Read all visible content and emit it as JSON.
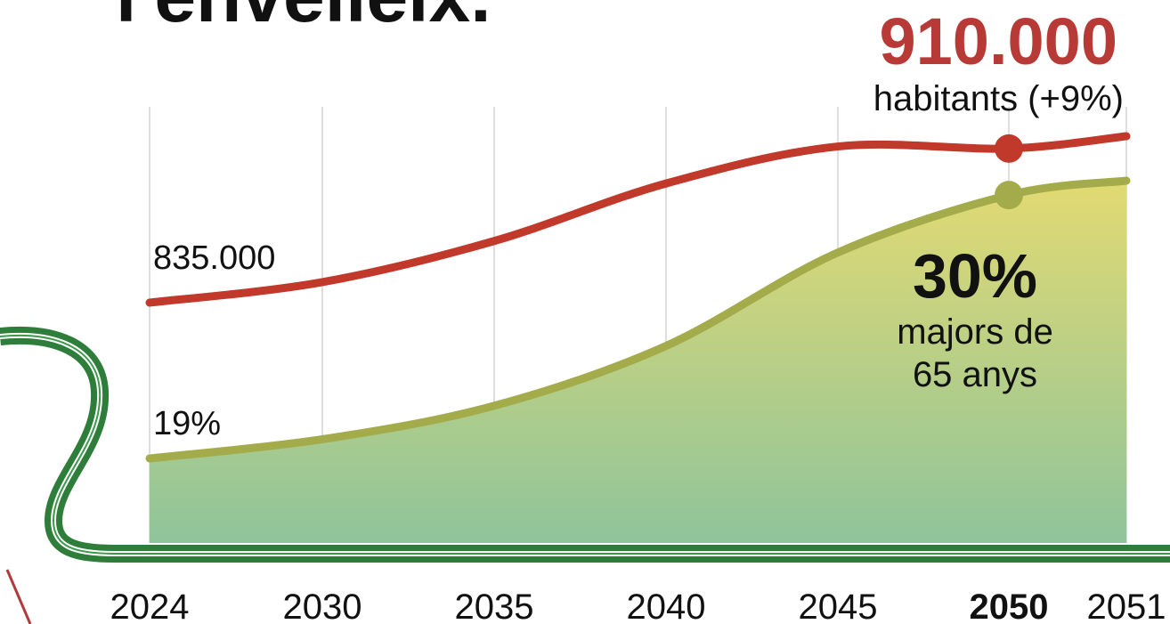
{
  "chart_data": {
    "type": "line",
    "title": "l'envelleix.",
    "categories": [
      "2024",
      "2030",
      "2035",
      "2040",
      "2045",
      "2050",
      "2051"
    ],
    "bold_category": 5,
    "series": [
      {
        "color": "#c0392b",
        "values": [
          835000,
          845000,
          865000,
          893000,
          911000,
          910000,
          916000
        ],
        "value_labels": [
          "835.000",
          null,
          null,
          null,
          null,
          "910.000",
          null
        ]
      },
      {
        "color": "#a3ab4a",
        "area": true,
        "values": [
          19,
          19.8,
          21.2,
          23.7,
          27.6,
          30,
          30.6
        ],
        "value_labels": [
          "19%",
          null,
          null,
          null,
          null,
          "30%",
          null
        ]
      }
    ],
    "annotations": [
      "habitants (+9%)",
      "majors de",
      "65 anys"
    ]
  }
}
